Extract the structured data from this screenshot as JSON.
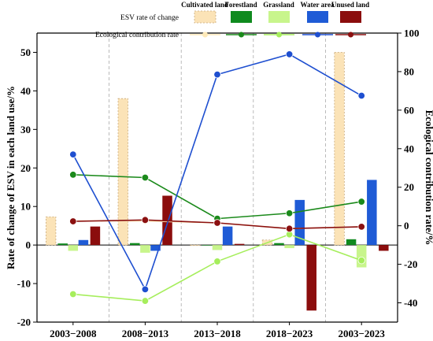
{
  "chart_data": {
    "type": "bar+line",
    "categories": [
      "2003−2008",
      "2008−2013",
      "2013−2018",
      "2018−2023",
      "2003−2023"
    ],
    "land_types": [
      "Cultivated land",
      "Forestland",
      "Grassland",
      "Water area",
      "Unused land"
    ],
    "colors": [
      "#fbe3b7",
      "#0f8a1e",
      "#c8f58c",
      "#1f5bd6",
      "#8b0d0d"
    ],
    "line_colors": [
      "#fde9b8",
      "#1b8a1b",
      "#a6ee5c",
      "#1e4fd0",
      "#8b1010"
    ],
    "bar_series": {
      "name": "ESV rate of change",
      "values": [
        [
          7.3,
          0.4,
          -1.5,
          1.3,
          4.8
        ],
        [
          38.0,
          0.5,
          -2.0,
          -1.5,
          12.8
        ],
        [
          0.0,
          0.0,
          -1.3,
          4.8,
          0.3
        ],
        [
          1.3,
          0.5,
          -0.8,
          11.7,
          -17.0
        ],
        [
          50.0,
          1.5,
          -5.8,
          16.9,
          -1.5
        ]
      ]
    },
    "line_series": {
      "name": "Ecological contribution rate",
      "values": [
        [
          2.5,
          26.5,
          -35.5,
          37.0,
          2.3
        ],
        [
          2.5,
          25.0,
          -39.0,
          -33.0,
          3.0
        ],
        [
          1.5,
          3.7,
          -18.5,
          78.5,
          1.5
        ],
        [
          -1.5,
          6.5,
          -4.5,
          89.0,
          -1.5
        ],
        [
          -0.5,
          12.5,
          -18.0,
          67.5,
          -0.5
        ]
      ]
    },
    "y_left": {
      "label": "Rate of change of ESV in each land use/%",
      "range": [
        -20,
        55
      ],
      "ticks": [
        -20,
        -10,
        0,
        10,
        20,
        30,
        40,
        50
      ]
    },
    "y_right": {
      "label": "Ecological contribution rate/%",
      "range": [
        -50,
        100
      ],
      "ticks": [
        -40,
        -20,
        0,
        20,
        40,
        60,
        80,
        100
      ]
    },
    "legend_position": "top"
  }
}
